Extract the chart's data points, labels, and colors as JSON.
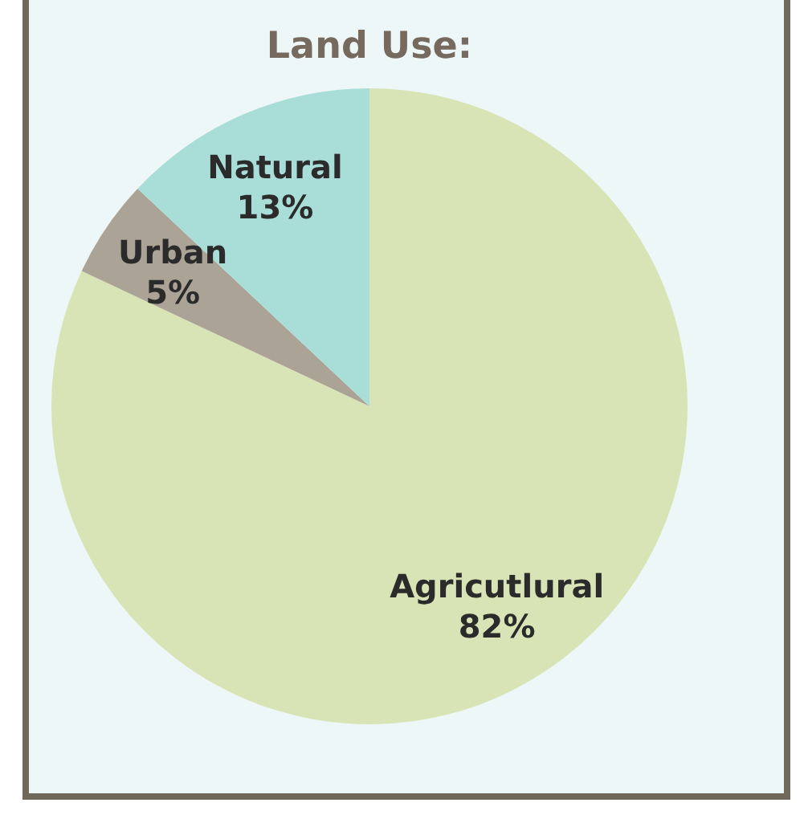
{
  "chart_data": {
    "type": "pie",
    "title": "Land Use:",
    "categories": [
      "Agricutlural",
      "Urban",
      "Natural"
    ],
    "values": [
      82,
      5,
      13
    ],
    "colors": [
      "#d8e4b6",
      "#aba395",
      "#a9ddd7"
    ],
    "value_labels": [
      "82%",
      "5%",
      "13%"
    ]
  }
}
